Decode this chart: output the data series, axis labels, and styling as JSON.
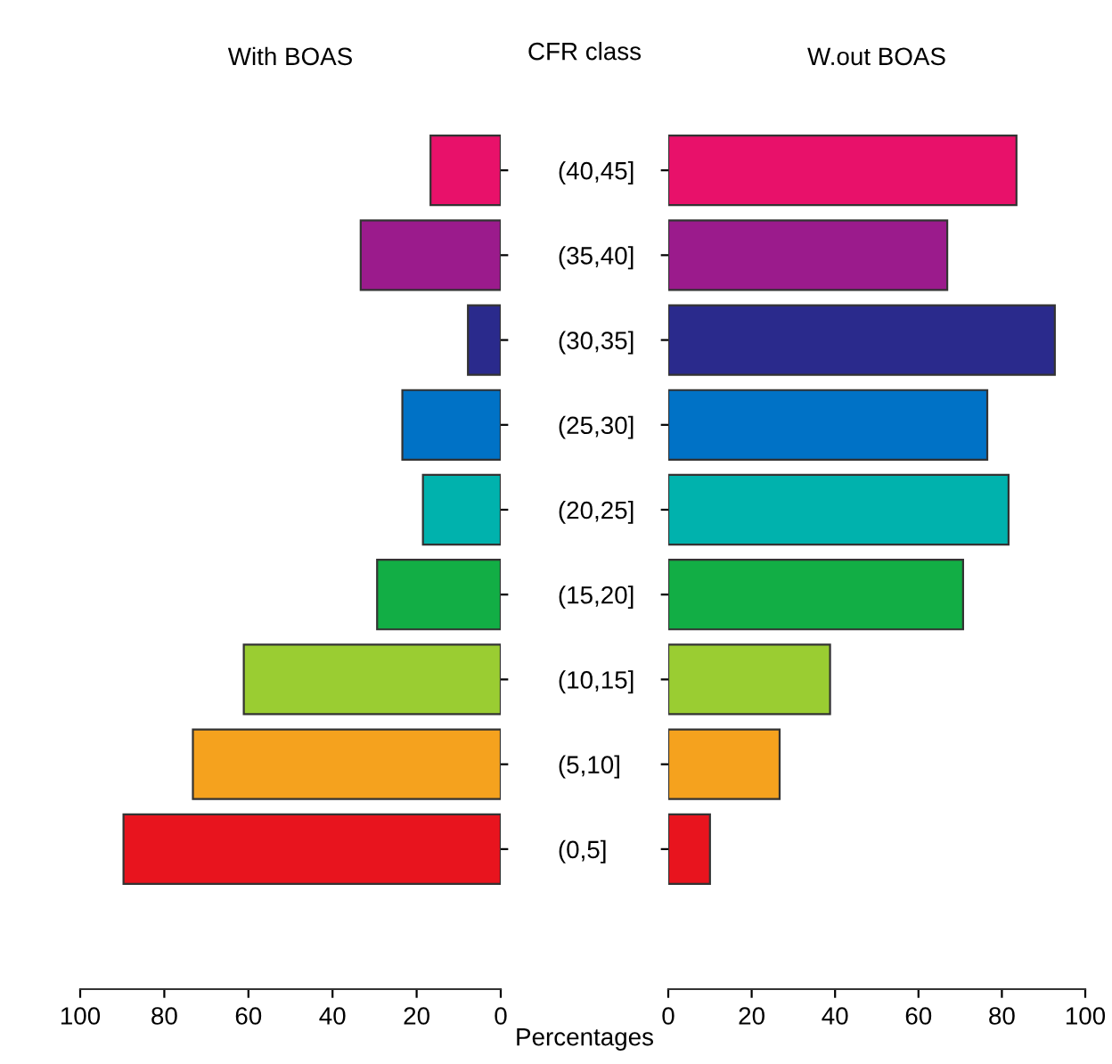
{
  "chart_data": [
    {
      "type": "bar",
      "orientation": "horizontal",
      "title": "With BOAS",
      "ylabel": "CFR class",
      "xlabel": "Percentages",
      "categories": [
        "(40,45]",
        "(35,40]",
        "(30,35]",
        "(25,30]",
        "(20,25]",
        "(15,20]",
        "(10,15]",
        "(5,10]",
        "(0,5]"
      ],
      "values": [
        16.7,
        33.3,
        7.8,
        23.4,
        18.5,
        29.4,
        61.1,
        73.2,
        89.7
      ],
      "colors": [
        "#e8116a",
        "#9b1b8c",
        "#2a2a8c",
        "#0072c6",
        "#00b2ad",
        "#12ae45",
        "#9acd32",
        "#f5a21e",
        "#e8141e"
      ],
      "xlim": [
        100,
        0
      ],
      "xticks": [
        100,
        80,
        60,
        40,
        20,
        0
      ],
      "grid": false,
      "legend": false
    },
    {
      "type": "bar",
      "orientation": "horizontal",
      "title": "W.out BOAS",
      "categories": [
        null,
        null,
        null,
        null,
        null,
        null,
        null,
        null,
        null
      ],
      "values": [
        83.5,
        66.9,
        92.7,
        76.5,
        81.6,
        70.7,
        38.8,
        26.7,
        10.0
      ],
      "colors": [
        "#e8116a",
        "#9b1b8c",
        "#2a2a8c",
        "#0072c6",
        "#00b2ad",
        "#12ae45",
        "#9acd32",
        "#f5a21e",
        "#e8141e"
      ],
      "xlim": [
        0,
        100
      ],
      "xticks": [
        0,
        20,
        40,
        60,
        80,
        100
      ],
      "grid": false,
      "legend": false
    }
  ]
}
